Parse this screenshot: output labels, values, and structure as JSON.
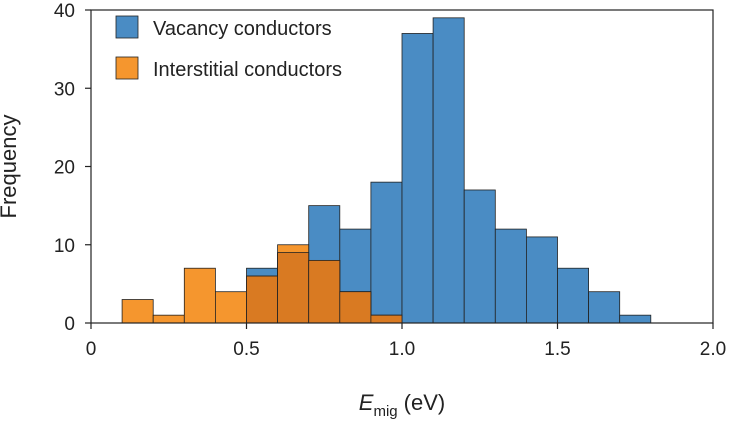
{
  "chart_data": {
    "type": "bar",
    "title": "",
    "xlabel": {
      "main": "E",
      "sub": "mig",
      "unit": "(eV)"
    },
    "ylabel": "Frequency",
    "xlim": [
      0,
      2.0
    ],
    "ylim": [
      0,
      40
    ],
    "xticks": [
      0,
      0.5,
      1.0,
      1.5,
      2.0
    ],
    "xtick_labels": [
      "0",
      "0.5",
      "1.0",
      "1.5",
      "2.0"
    ],
    "yticks": [
      0,
      10,
      20,
      30,
      40
    ],
    "ytick_labels": [
      "0",
      "10",
      "20",
      "30",
      "40"
    ],
    "bin_width": 0.1,
    "bin_starts": [
      0.1,
      0.2,
      0.3,
      0.4,
      0.5,
      0.6,
      0.7,
      0.8,
      0.9,
      1.0,
      1.1,
      1.2,
      1.3,
      1.4,
      1.5,
      1.6,
      1.7,
      1.8
    ],
    "series": [
      {
        "name": "Vacancy conductors",
        "color": "#4a8cc4",
        "values": [
          0,
          0,
          0,
          0,
          7,
          9,
          15,
          12,
          18,
          37,
          39,
          17,
          12,
          11,
          7,
          4,
          1,
          0
        ]
      },
      {
        "name": "Interstitial conductors",
        "color": "#f5962e",
        "values": [
          3,
          1,
          7,
          4,
          6,
          10,
          8,
          4,
          1,
          0,
          0,
          0,
          0,
          0,
          0,
          0,
          0,
          0
        ]
      }
    ],
    "overlap_color": "#d97a22",
    "legend_position": "top-left",
    "grid": false
  }
}
